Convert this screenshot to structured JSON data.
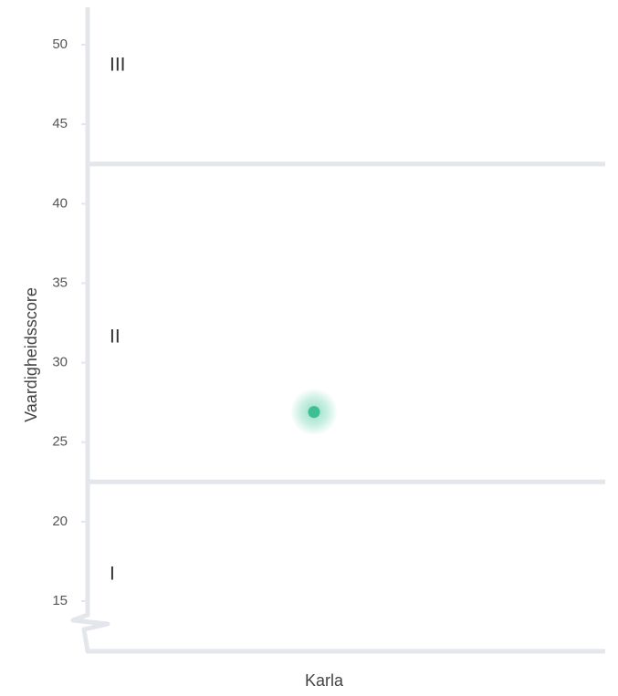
{
  "chart_data": {
    "type": "scatter",
    "title": "",
    "xlabel": "Karla",
    "ylabel": "Vaardigheidsscore",
    "ylim": [
      13.2,
      52.5
    ],
    "y_axis_break": true,
    "yticks": [
      15,
      20,
      25,
      30,
      35,
      40,
      45,
      50
    ],
    "grid": false,
    "bands": [
      {
        "label": "I",
        "from": 13.2,
        "to": 22.5
      },
      {
        "label": "II",
        "from": 22.5,
        "to": 42.5
      },
      {
        "label": "III",
        "from": 42.5,
        "to": 52.5
      }
    ],
    "points": [
      {
        "x": "Karla",
        "y": 26.9
      }
    ],
    "colors": {
      "axis": "#e3e6ea",
      "point": "#3dbf94",
      "point_halo": "#5fd0aa",
      "tick_text": "#555555",
      "band_text": "#333333"
    }
  }
}
